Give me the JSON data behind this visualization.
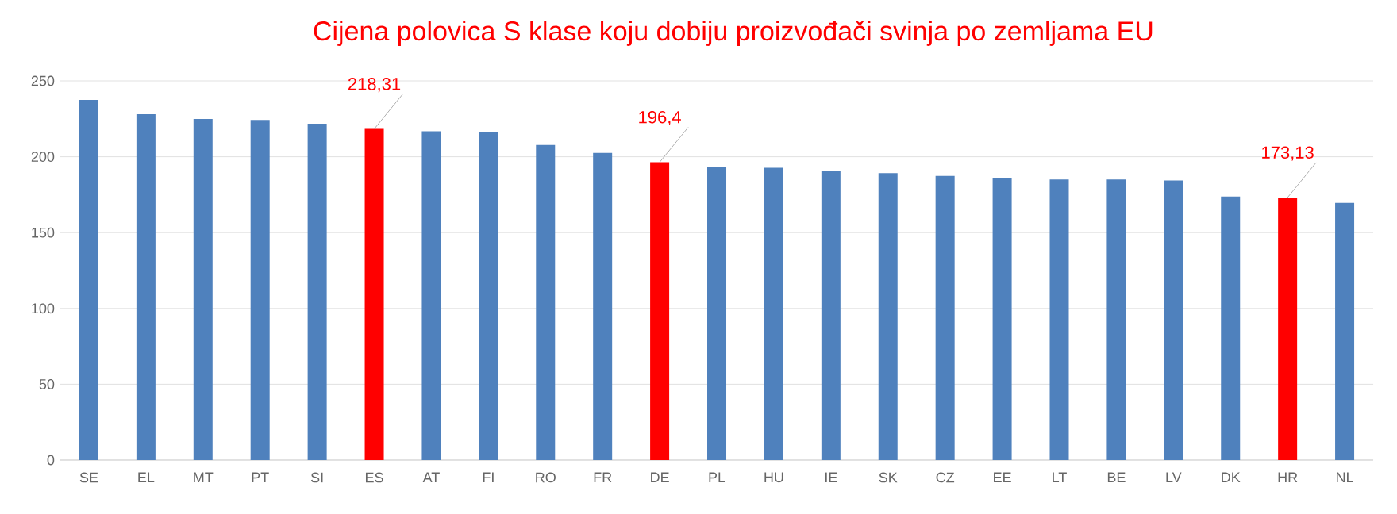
{
  "chart_data": {
    "type": "bar",
    "title": "Cijena polovica S klase  koju dobiju proizvođači svinja po zemljama EU",
    "categories": [
      "SE",
      "EL",
      "MT",
      "PT",
      "SI",
      "ES",
      "AT",
      "FI",
      "RO",
      "FR",
      "DE",
      "PL",
      "HU",
      "IE",
      "SK",
      "CZ",
      "EE",
      "LT",
      "BE",
      "LV",
      "DK",
      "HR",
      "NL"
    ],
    "values": [
      237.4,
      228,
      224.9,
      224.2,
      221.7,
      218.31,
      216.8,
      216.1,
      207.8,
      202.5,
      196.4,
      193.4,
      192.7,
      190.9,
      189.2,
      187.4,
      185.7,
      185,
      185,
      184.3,
      173.8,
      173.13,
      169.6
    ],
    "value_labels": [
      null,
      null,
      null,
      null,
      null,
      "218,31",
      null,
      null,
      null,
      null,
      "196,4",
      null,
      null,
      null,
      null,
      null,
      null,
      null,
      null,
      null,
      null,
      "173,13",
      null
    ],
    "colors": [
      "#4f81bd",
      "#4f81bd",
      "#4f81bd",
      "#4f81bd",
      "#4f81bd",
      "#ff0000",
      "#4f81bd",
      "#4f81bd",
      "#4f81bd",
      "#4f81bd",
      "#ff0000",
      "#4f81bd",
      "#4f81bd",
      "#4f81bd",
      "#4f81bd",
      "#4f81bd",
      "#4f81bd",
      "#4f81bd",
      "#4f81bd",
      "#4f81bd",
      "#4f81bd",
      "#ff0000",
      "#4f81bd"
    ],
    "ylim": [
      0,
      250
    ],
    "yticks": [
      0,
      50,
      100,
      150,
      200,
      250
    ],
    "grid": "y"
  }
}
